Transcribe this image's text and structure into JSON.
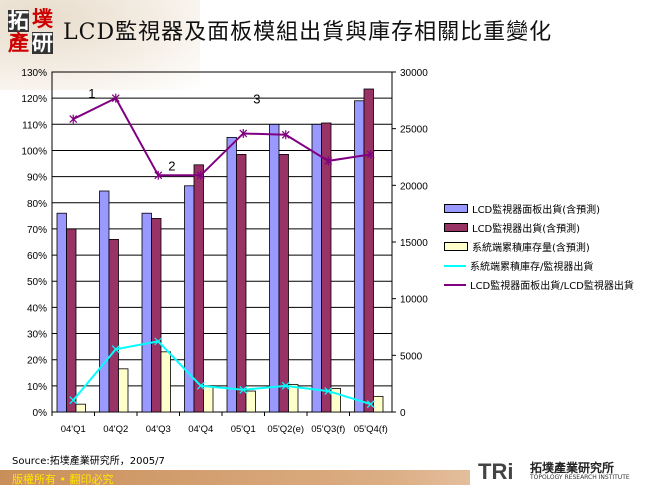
{
  "header": {
    "title": "LCD監視器及面板模組出貨與庫存相關比重變化",
    "logo_text": [
      "拓",
      "墣",
      "產",
      "研"
    ]
  },
  "chart_data": {
    "type": "bar+line",
    "title": "LCD監視器及面板模組出貨與庫存相關比重變化",
    "categories": [
      "04'Q1",
      "04'Q2",
      "04'Q3",
      "04'Q4",
      "05'Q1",
      "05'Q2(e)",
      "05'Q3(f)",
      "05'Q4(f)"
    ],
    "y_left": {
      "range": [
        0,
        130
      ],
      "unit": "%",
      "ticks": [
        "0%",
        "10%",
        "20%",
        "30%",
        "40%",
        "50%",
        "60%",
        "70%",
        "80%",
        "90%",
        "100%",
        "110%",
        "120%",
        "130%"
      ]
    },
    "y_right": {
      "range": [
        0,
        30000
      ],
      "ticks": [
        "0",
        "5000",
        "10000",
        "15000",
        "20000",
        "25000",
        "30000"
      ]
    },
    "grid": true,
    "legend_placement": "right",
    "series": [
      {
        "name": "LCD監視器面板出貨(含預測)",
        "type": "bar",
        "axis": "right",
        "color": "#9999ff",
        "values": [
          17540,
          19500,
          17540,
          19960,
          24230,
          25380,
          25380,
          27460
        ]
      },
      {
        "name": "LCD監視器出貨(含預測)",
        "type": "bar",
        "axis": "right",
        "color": "#993366",
        "values": [
          16150,
          15230,
          17080,
          21810,
          22730,
          22730,
          25500,
          28500
        ]
      },
      {
        "name": "系統端累積庫存量(含預測)",
        "type": "bar",
        "axis": "right",
        "color": "#ffffcc",
        "values": [
          690,
          3810,
          5310,
          2310,
          1850,
          2420,
          2080,
          1380
        ]
      },
      {
        "name": "系統端累積庫存/監視器出貨",
        "type": "line",
        "axis": "left",
        "color": "#00ffff",
        "marker": "x",
        "values": [
          4.5,
          24,
          27,
          10,
          8.5,
          10,
          8,
          3
        ]
      },
      {
        "name": "LCD監視器面板出貨/LCD監視器出貨",
        "type": "line",
        "axis": "left",
        "color": "#800080",
        "marker": "star",
        "values": [
          112,
          120,
          90.5,
          90.5,
          106.5,
          106,
          96,
          98.5
        ]
      }
    ],
    "annotations": [
      {
        "text": "1",
        "category": "04'Q1"
      },
      {
        "text": "2",
        "category": "04'Q3"
      },
      {
        "text": "3",
        "category": "05'Q1"
      }
    ]
  },
  "footer": {
    "source": "Source:拓墣產業研究所，2005/7",
    "copyright": "版權所有 • 翻印必究",
    "brand_mark": "TRi",
    "brand_cn": "拓墣產業研究所",
    "brand_en": "TOPOLOGY RESEARCH INSTITUTE"
  }
}
